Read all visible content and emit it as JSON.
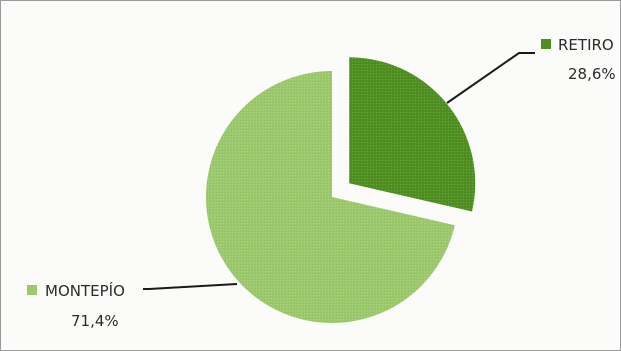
{
  "chart_data": {
    "type": "pie",
    "title": "",
    "slices": [
      {
        "label": "RETIRO",
        "value": 28.6,
        "value_label": "28,6%",
        "color": "#4f8f1f",
        "exploded": true
      },
      {
        "label": "MONTEPÍO",
        "value": 71.4,
        "value_label": "71,4%",
        "color": "#9cc96b",
        "exploded": false
      }
    ],
    "legend": "inline-callouts",
    "start": "top",
    "direction": "clockwise"
  }
}
